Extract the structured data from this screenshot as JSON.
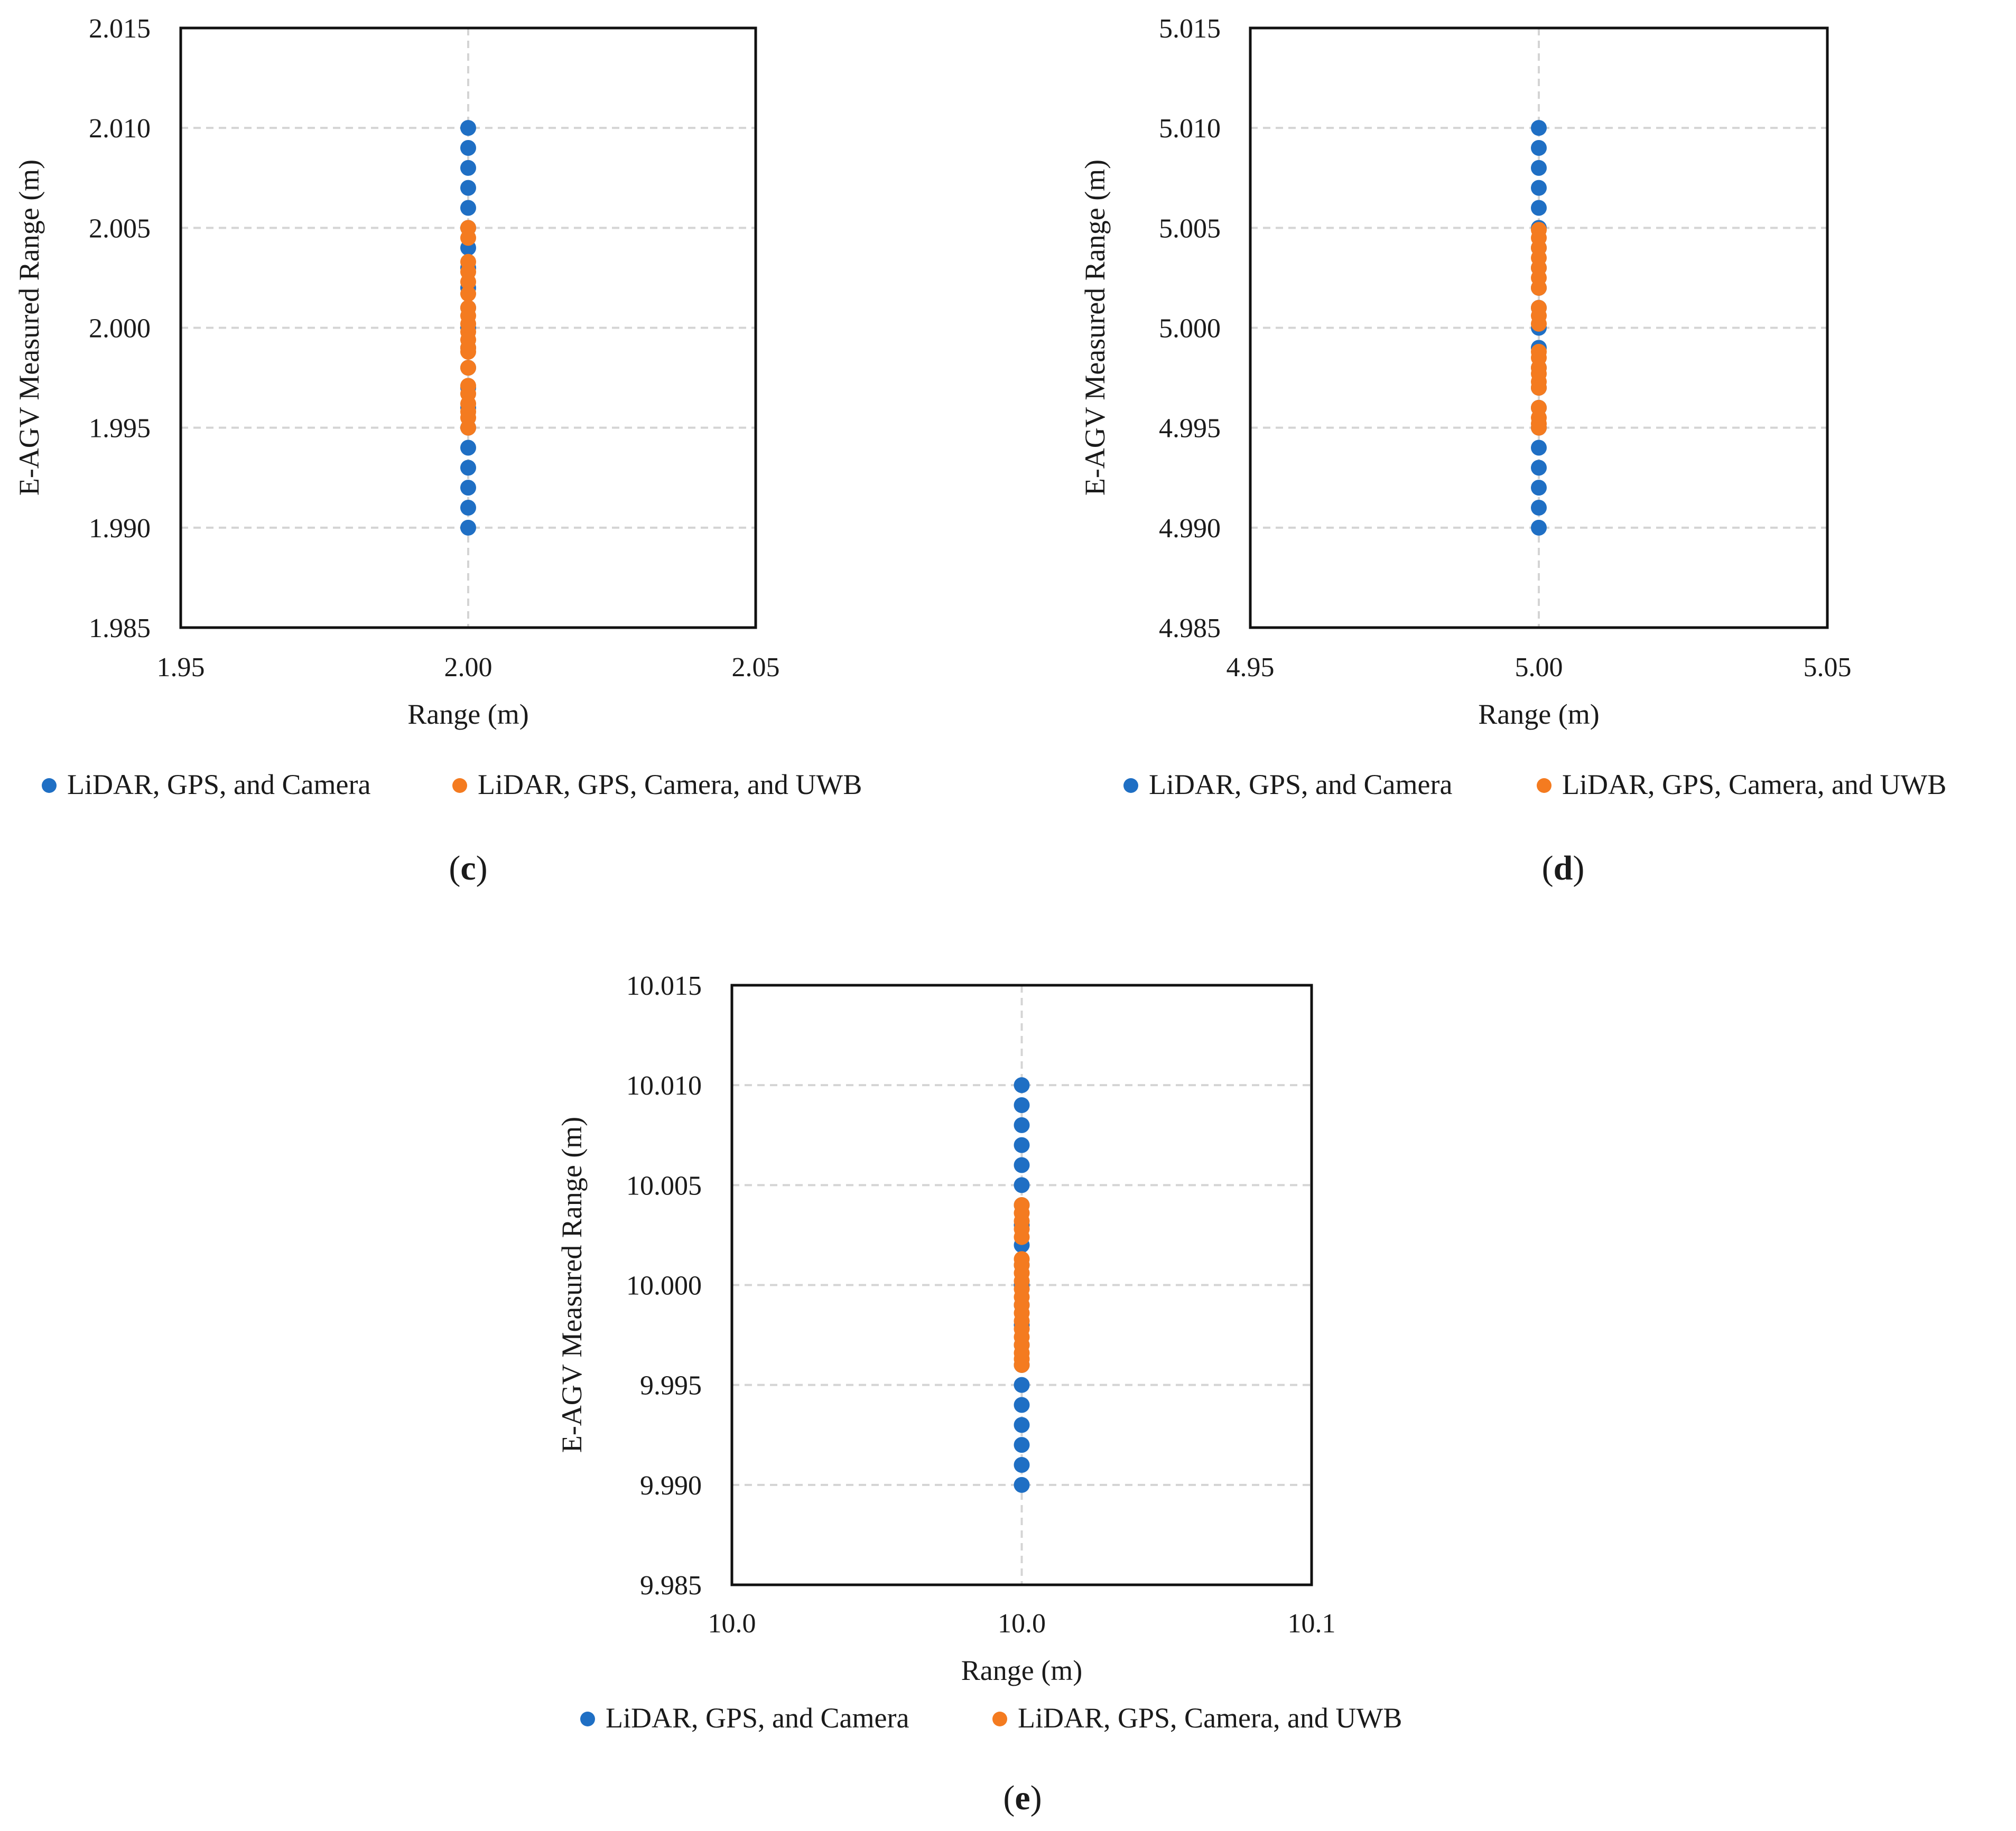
{
  "chart_data": [
    {
      "type": "scatter",
      "panel_label": "c",
      "xlabel": "Range (m)",
      "ylabel": "E-AGV Measured Range  (m)",
      "xlim": [
        1.95,
        2.05
      ],
      "ylim": [
        1.985,
        2.015
      ],
      "x_ticks": [
        "1.95",
        "2.00",
        "2.05"
      ],
      "y_ticks": [
        "2.015",
        "2.010",
        "2.005",
        "2.000",
        "1.995",
        "1.990",
        "1.985"
      ],
      "grid": true,
      "legend_position": "bottom",
      "series": [
        {
          "name": "LiDAR, GPS, and Camera",
          "color": "#1f6fc4",
          "x": [
            2.0,
            2.0,
            2.0,
            2.0,
            2.0,
            2.0,
            2.0,
            2.0,
            2.0,
            2.0,
            2.0,
            2.0,
            2.0,
            2.0,
            2.0,
            2.0,
            2.0,
            2.0,
            2.0,
            2.0,
            2.0
          ],
          "y": [
            2.01,
            2.009,
            2.008,
            2.007,
            2.006,
            2.005,
            2.004,
            2.003,
            2.002,
            2.001,
            2.0,
            1.999,
            1.998,
            1.997,
            1.996,
            1.995,
            1.994,
            1.993,
            1.992,
            1.991,
            1.99
          ]
        },
        {
          "name": "LiDAR, GPS, Camera, and UWB",
          "color": "#f47b20",
          "x": [
            2.0,
            2.0,
            2.0,
            2.0,
            2.0,
            2.0,
            2.0,
            2.0,
            2.0,
            2.0,
            2.0,
            2.0,
            2.0,
            2.0,
            2.0,
            2.0,
            2.0,
            2.0,
            2.0,
            2.0
          ],
          "y": [
            2.005,
            2.0045,
            2.0033,
            2.0028,
            2.0023,
            2.0017,
            2.001,
            2.0006,
            2.0002,
            1.9998,
            1.9994,
            1.999,
            1.9988,
            1.998,
            1.9971,
            1.9967,
            1.9962,
            1.9958,
            1.9955,
            1.995
          ]
        }
      ]
    },
    {
      "type": "scatter",
      "panel_label": "d",
      "xlabel": "Range (m)",
      "ylabel": "E-AGV Measured Range  (m)",
      "xlim": [
        4.95,
        5.05
      ],
      "ylim": [
        4.985,
        5.015
      ],
      "x_ticks": [
        "4.95",
        "5.00",
        "5.05"
      ],
      "y_ticks": [
        "5.015",
        "5.010",
        "5.005",
        "5.000",
        "4.995",
        "4.990",
        "4.985"
      ],
      "grid": true,
      "legend_position": "bottom",
      "series": [
        {
          "name": "LiDAR, GPS, and Camera",
          "color": "#1f6fc4",
          "x": [
            5.0,
            5.0,
            5.0,
            5.0,
            5.0,
            5.0,
            5.0,
            5.0,
            5.0,
            5.0,
            5.0,
            5.0,
            5.0,
            5.0,
            5.0,
            5.0,
            5.0,
            5.0,
            5.0,
            5.0,
            5.0
          ],
          "y": [
            5.01,
            5.009,
            5.008,
            5.007,
            5.006,
            5.005,
            5.004,
            5.003,
            5.002,
            5.001,
            5.0,
            4.999,
            4.998,
            4.997,
            4.996,
            4.995,
            4.994,
            4.993,
            4.992,
            4.991,
            4.99
          ]
        },
        {
          "name": "LiDAR, GPS, Camera, and UWB",
          "color": "#f47b20",
          "x": [
            5.0,
            5.0,
            5.0,
            5.0,
            5.0,
            5.0,
            5.0,
            5.0,
            5.0,
            5.0,
            5.0,
            5.0,
            5.0,
            5.0,
            5.0,
            5.0,
            5.0,
            5.0,
            5.0,
            5.0
          ],
          "y": [
            5.0049,
            5.0045,
            5.004,
            5.0035,
            5.003,
            5.0025,
            5.002,
            5.001,
            5.0006,
            5.0002,
            4.9985,
            4.998,
            4.9977,
            4.9973,
            4.997,
            4.996,
            4.9955,
            4.9952,
            4.995,
            4.9988
          ]
        }
      ]
    },
    {
      "type": "scatter",
      "panel_label": "e",
      "xlabel": "Range (m)",
      "ylabel": "E-AGV Measured Range  (m)",
      "xlim": [
        9.95,
        10.05
      ],
      "ylim": [
        9.985,
        10.015
      ],
      "x_ticks": [
        "10.0",
        "10.0",
        "10.1"
      ],
      "y_ticks": [
        "10.015",
        "10.010",
        "10.005",
        "10.000",
        "9.995",
        "9.990",
        "9.985"
      ],
      "grid": true,
      "legend_position": "bottom",
      "series": [
        {
          "name": "LiDAR, GPS, and Camera",
          "color": "#1f6fc4",
          "x": [
            10.0,
            10.0,
            10.0,
            10.0,
            10.0,
            10.0,
            10.0,
            10.0,
            10.0,
            10.0,
            10.0,
            10.0,
            10.0,
            10.0,
            10.0,
            10.0,
            10.0,
            10.0,
            10.0,
            10.0,
            10.0
          ],
          "y": [
            10.01,
            10.009,
            10.008,
            10.007,
            10.006,
            10.005,
            10.004,
            10.003,
            10.002,
            10.001,
            10.0,
            9.999,
            9.998,
            9.997,
            9.996,
            9.995,
            9.994,
            9.993,
            9.992,
            9.991,
            9.99
          ]
        },
        {
          "name": "LiDAR, GPS, Camera, and UWB",
          "color": "#f47b20",
          "x": [
            10.0,
            10.0,
            10.0,
            10.0,
            10.0,
            10.0,
            10.0,
            10.0,
            10.0,
            10.0,
            10.0,
            10.0,
            10.0,
            10.0,
            10.0,
            10.0,
            10.0,
            10.0,
            10.0,
            10.0
          ],
          "y": [
            10.004,
            10.0036,
            10.0032,
            10.0028,
            10.0024,
            10.0013,
            10.001,
            10.0006,
            10.0002,
            9.9998,
            9.9994,
            9.999,
            9.9986,
            9.9982,
            9.9978,
            9.9974,
            9.997,
            9.9966,
            9.9963,
            9.996
          ]
        }
      ]
    }
  ]
}
